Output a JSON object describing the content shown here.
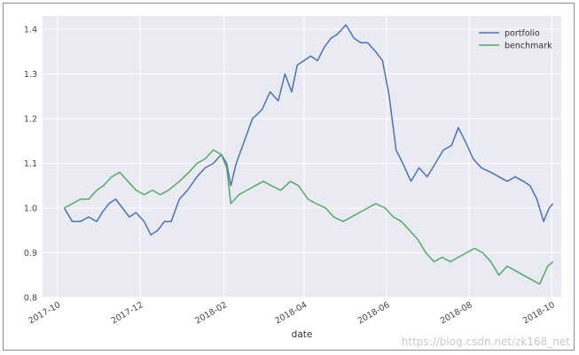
{
  "chart_data": {
    "type": "line",
    "xlabel": "date",
    "ylabel": "",
    "xlim": [
      "2017-09-20",
      "2018-10-08"
    ],
    "ylim": [
      0.8,
      1.43
    ],
    "x_ticks": [
      "2017-10",
      "2017-12",
      "2018-02",
      "2018-04",
      "2018-06",
      "2018-08",
      "2018-10"
    ],
    "y_ticks": [
      "0.8",
      "0.9",
      "1.0",
      "1.1",
      "1.2",
      "1.3",
      "1.4"
    ],
    "grid": true,
    "legend": "top-right",
    "series": [
      {
        "name": "portfolio",
        "color": "#4c72b0",
        "x": [
          "2017-10-06",
          "2017-10-12",
          "2017-10-18",
          "2017-10-24",
          "2017-10-30",
          "2017-11-03",
          "2017-11-08",
          "2017-11-13",
          "2017-11-18",
          "2017-11-23",
          "2017-11-28",
          "2017-12-04",
          "2017-12-09",
          "2017-12-14",
          "2017-12-19",
          "2017-12-24",
          "2017-12-30",
          "2018-01-05",
          "2018-01-12",
          "2018-01-18",
          "2018-01-24",
          "2018-01-30",
          "2018-02-03",
          "2018-02-06",
          "2018-02-10",
          "2018-02-16",
          "2018-02-22",
          "2018-03-01",
          "2018-03-07",
          "2018-03-13",
          "2018-03-18",
          "2018-03-23",
          "2018-03-27",
          "2018-04-01",
          "2018-04-06",
          "2018-04-11",
          "2018-04-16",
          "2018-04-21",
          "2018-04-26",
          "2018-05-02",
          "2018-05-08",
          "2018-05-13",
          "2018-05-18",
          "2018-05-24",
          "2018-05-29",
          "2018-06-03",
          "2018-06-08",
          "2018-06-13",
          "2018-06-19",
          "2018-06-25",
          "2018-07-01",
          "2018-07-07",
          "2018-07-13",
          "2018-07-19",
          "2018-07-24",
          "2018-07-29",
          "2018-08-04",
          "2018-08-10",
          "2018-08-17",
          "2018-08-23",
          "2018-08-29",
          "2018-09-04",
          "2018-09-10",
          "2018-09-15",
          "2018-09-20",
          "2018-09-25",
          "2018-09-29",
          "2018-10-02"
        ],
        "values": [
          1.0,
          0.97,
          0.97,
          0.98,
          0.97,
          0.99,
          1.01,
          1.02,
          1.0,
          0.98,
          0.99,
          0.97,
          0.94,
          0.95,
          0.97,
          0.97,
          1.02,
          1.04,
          1.07,
          1.09,
          1.1,
          1.12,
          1.1,
          1.05,
          1.1,
          1.15,
          1.2,
          1.22,
          1.26,
          1.24,
          1.3,
          1.26,
          1.32,
          1.33,
          1.34,
          1.33,
          1.36,
          1.38,
          1.39,
          1.41,
          1.38,
          1.37,
          1.37,
          1.35,
          1.33,
          1.25,
          1.13,
          1.1,
          1.06,
          1.09,
          1.07,
          1.1,
          1.13,
          1.14,
          1.18,
          1.15,
          1.11,
          1.09,
          1.08,
          1.07,
          1.06,
          1.07,
          1.06,
          1.05,
          1.02,
          0.97,
          1.0,
          1.01
        ]
      },
      {
        "name": "benchmark",
        "color": "#55a868",
        "x": [
          "2017-10-06",
          "2017-10-12",
          "2017-10-18",
          "2017-10-24",
          "2017-10-30",
          "2017-11-04",
          "2017-11-10",
          "2017-11-16",
          "2017-11-22",
          "2017-11-28",
          "2017-12-04",
          "2017-12-10",
          "2017-12-16",
          "2017-12-22",
          "2017-12-30",
          "2018-01-06",
          "2018-01-12",
          "2018-01-18",
          "2018-01-24",
          "2018-01-30",
          "2018-02-03",
          "2018-02-06",
          "2018-02-12",
          "2018-02-18",
          "2018-02-24",
          "2018-03-02",
          "2018-03-08",
          "2018-03-15",
          "2018-03-22",
          "2018-03-28",
          "2018-04-04",
          "2018-04-10",
          "2018-04-17",
          "2018-04-23",
          "2018-04-30",
          "2018-05-06",
          "2018-05-12",
          "2018-05-18",
          "2018-05-24",
          "2018-05-31",
          "2018-06-06",
          "2018-06-12",
          "2018-06-18",
          "2018-06-24",
          "2018-06-30",
          "2018-07-06",
          "2018-07-12",
          "2018-07-18",
          "2018-07-24",
          "2018-07-30",
          "2018-08-05",
          "2018-08-11",
          "2018-08-17",
          "2018-08-23",
          "2018-08-29",
          "2018-09-04",
          "2018-09-10",
          "2018-09-16",
          "2018-09-22",
          "2018-09-28",
          "2018-10-02"
        ],
        "values": [
          1.0,
          1.01,
          1.02,
          1.02,
          1.04,
          1.05,
          1.07,
          1.08,
          1.06,
          1.04,
          1.03,
          1.04,
          1.03,
          1.04,
          1.06,
          1.08,
          1.1,
          1.11,
          1.13,
          1.12,
          1.09,
          1.01,
          1.03,
          1.04,
          1.05,
          1.06,
          1.05,
          1.04,
          1.06,
          1.05,
          1.02,
          1.01,
          1.0,
          0.98,
          0.97,
          0.98,
          0.99,
          1.0,
          1.01,
          1.0,
          0.98,
          0.97,
          0.95,
          0.93,
          0.9,
          0.88,
          0.89,
          0.88,
          0.89,
          0.9,
          0.91,
          0.9,
          0.88,
          0.85,
          0.87,
          0.86,
          0.85,
          0.84,
          0.83,
          0.87,
          0.88
        ]
      }
    ]
  }
}
